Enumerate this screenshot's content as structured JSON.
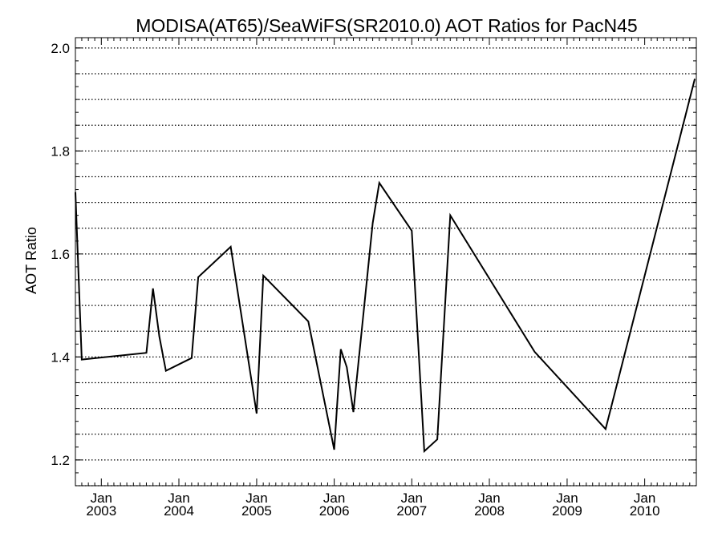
{
  "chart_data": {
    "type": "line",
    "title": "MODISA(AT65)/SeaWiFS(SR2010.0)  AOT Ratios for PacN45",
    "xlabel": "",
    "ylabel": "AOT Ratio",
    "ylim": [
      1.15,
      2.02
    ],
    "xlim": [
      "2002-09-01",
      "2010-09-01"
    ],
    "y_ticks": [
      "1.2",
      "1.4",
      "1.6",
      "1.8",
      "2.0"
    ],
    "x_tick_labels": [
      {
        "month": "Jan",
        "year": "2003",
        "date": "2003-01-01"
      },
      {
        "month": "Jan",
        "year": "2004",
        "date": "2004-01-01"
      },
      {
        "month": "Jan",
        "year": "2005",
        "date": "2005-01-01"
      },
      {
        "month": "Jan",
        "year": "2006",
        "date": "2006-01-01"
      },
      {
        "month": "Jan",
        "year": "2007",
        "date": "2007-01-01"
      },
      {
        "month": "Jan",
        "year": "2008",
        "date": "2008-01-01"
      },
      {
        "month": "Jan",
        "year": "2009",
        "date": "2009-01-01"
      },
      {
        "month": "Jan",
        "year": "2010",
        "date": "2010-01-01"
      }
    ],
    "grid": true,
    "line_color": "#000000",
    "series": [
      {
        "points": [
          {
            "x": "2002-09-01",
            "y": 1.72
          },
          {
            "x": "2002-10-01",
            "y": 1.395
          },
          {
            "x": "2003-08-01",
            "y": 1.408
          },
          {
            "x": "2003-09-01",
            "y": 1.533
          },
          {
            "x": "2003-10-01",
            "y": 1.44
          },
          {
            "x": "2003-11-01",
            "y": 1.373
          },
          {
            "x": "2004-03-01",
            "y": 1.398
          },
          {
            "x": "2004-04-01",
            "y": 1.555
          },
          {
            "x": "2004-09-01",
            "y": 1.614
          },
          {
            "x": "2005-01-01",
            "y": 1.29
          },
          {
            "x": "2005-02-01",
            "y": 1.558
          },
          {
            "x": "2005-09-01",
            "y": 1.469
          },
          {
            "x": "2006-01-01",
            "y": 1.22
          },
          {
            "x": "2006-02-01",
            "y": 1.415
          },
          {
            "x": "2006-03-01",
            "y": 1.38
          },
          {
            "x": "2006-04-01",
            "y": 1.293
          },
          {
            "x": "2006-07-01",
            "y": 1.66
          },
          {
            "x": "2006-08-01",
            "y": 1.738
          },
          {
            "x": "2007-01-01",
            "y": 1.645
          },
          {
            "x": "2007-03-01",
            "y": 1.217
          },
          {
            "x": "2007-05-01",
            "y": 1.24
          },
          {
            "x": "2007-07-01",
            "y": 1.675
          },
          {
            "x": "2008-08-01",
            "y": 1.41
          },
          {
            "x": "2009-07-01",
            "y": 1.26
          },
          {
            "x": "2010-08-25",
            "y": 1.94
          }
        ]
      }
    ]
  }
}
